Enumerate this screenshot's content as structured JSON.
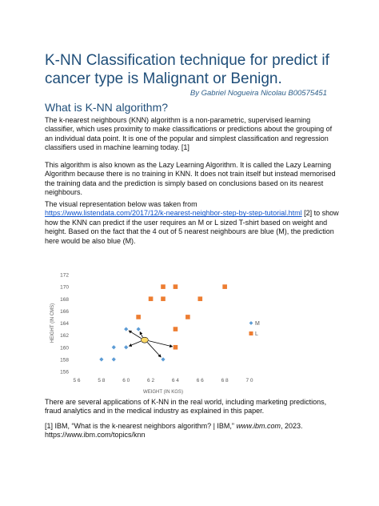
{
  "doc": {
    "title": "K-NN Classification technique for predict if cancer type is Malignant or Benign.",
    "author": "By Gabriel Nogueira Nicolau B00575451",
    "section_heading": "What is K-NN algorithm?",
    "p1": "The k-nearest neighbours (KNN) algorithm is a non-parametric, supervised learning classifier, which uses proximity to make classifications or predictions about the grouping of an individual data point. It is one of the popular and simplest classification and regression classifiers used in machine learning today. [1]",
    "p2": "This algorithm is also known as the Lazy Learning Algorithm.  It is called the Lazy Learning Algorithm because there is no training in KNN. It does not train itself but instead memorised the training data and the prediction is simply based on conclusions based on its nearest neighbours.",
    "p3_lead": "The visual representation below was taken from",
    "p3_link": "https://www.listendata.com/2017/12/k-nearest-neighbor-step-by-step-tutorial.html",
    "p3_rest": " [2] to show how the KNN can predict if the user requires an M or L sized T-shirt based on weight and height. Based on the fact that the 4 out of 5 nearest neighbours are blue (M), the prediction here would be also blue (M).",
    "p4": "There are several applications of K-NN in the real world, including marketing predictions, fraud analytics and in the medical industry as explained in this paper.",
    "ref1_pre": "[1] IBM, “What is the k-nearest neighbors algorithm? | IBM,” ",
    "ref1_site": "www.ibm.com",
    "ref1_post": ", 2023. https://www.ibm.com/topics/knn"
  },
  "chart_data": {
    "type": "scatter",
    "xlabel": "WEIGHT (IN KGS)",
    "ylabel": "HEIGHT (IN CMS)",
    "xlim": [
      56,
      70
    ],
    "ylim": [
      156,
      172
    ],
    "xticks": [
      56,
      58,
      60,
      62,
      64,
      66,
      68,
      70
    ],
    "yticks": [
      156,
      158,
      160,
      162,
      164,
      166,
      168,
      170,
      172
    ],
    "xtick_labels": [
      "5 6",
      "5 8",
      "6 0",
      "6 2",
      "6 4",
      "6 6",
      "6 8",
      "7 0"
    ],
    "legend_position": "right",
    "series": [
      {
        "name": "M",
        "color": "#5b9bd5",
        "marker": "diamond",
        "points": [
          [
            58,
            158
          ],
          [
            59,
            158
          ],
          [
            59,
            160
          ],
          [
            60,
            160
          ],
          [
            60,
            163
          ],
          [
            61,
            163
          ],
          [
            63,
            158
          ]
        ]
      },
      {
        "name": "L",
        "color": "#ed7d31",
        "marker": "square",
        "points": [
          [
            61,
            165
          ],
          [
            62,
            168
          ],
          [
            63,
            168
          ],
          [
            63,
            170
          ],
          [
            64,
            170
          ],
          [
            64,
            163
          ],
          [
            64,
            160
          ],
          [
            65,
            165
          ],
          [
            66,
            168
          ],
          [
            68,
            170
          ]
        ]
      }
    ],
    "query_point": [
      61.5,
      161.2
    ],
    "query_color": "#ffd966",
    "neighbour_arrows": [
      [
        60,
        163
      ],
      [
        61,
        163
      ],
      [
        60,
        160
      ],
      [
        63,
        158
      ],
      [
        64,
        160
      ]
    ]
  }
}
